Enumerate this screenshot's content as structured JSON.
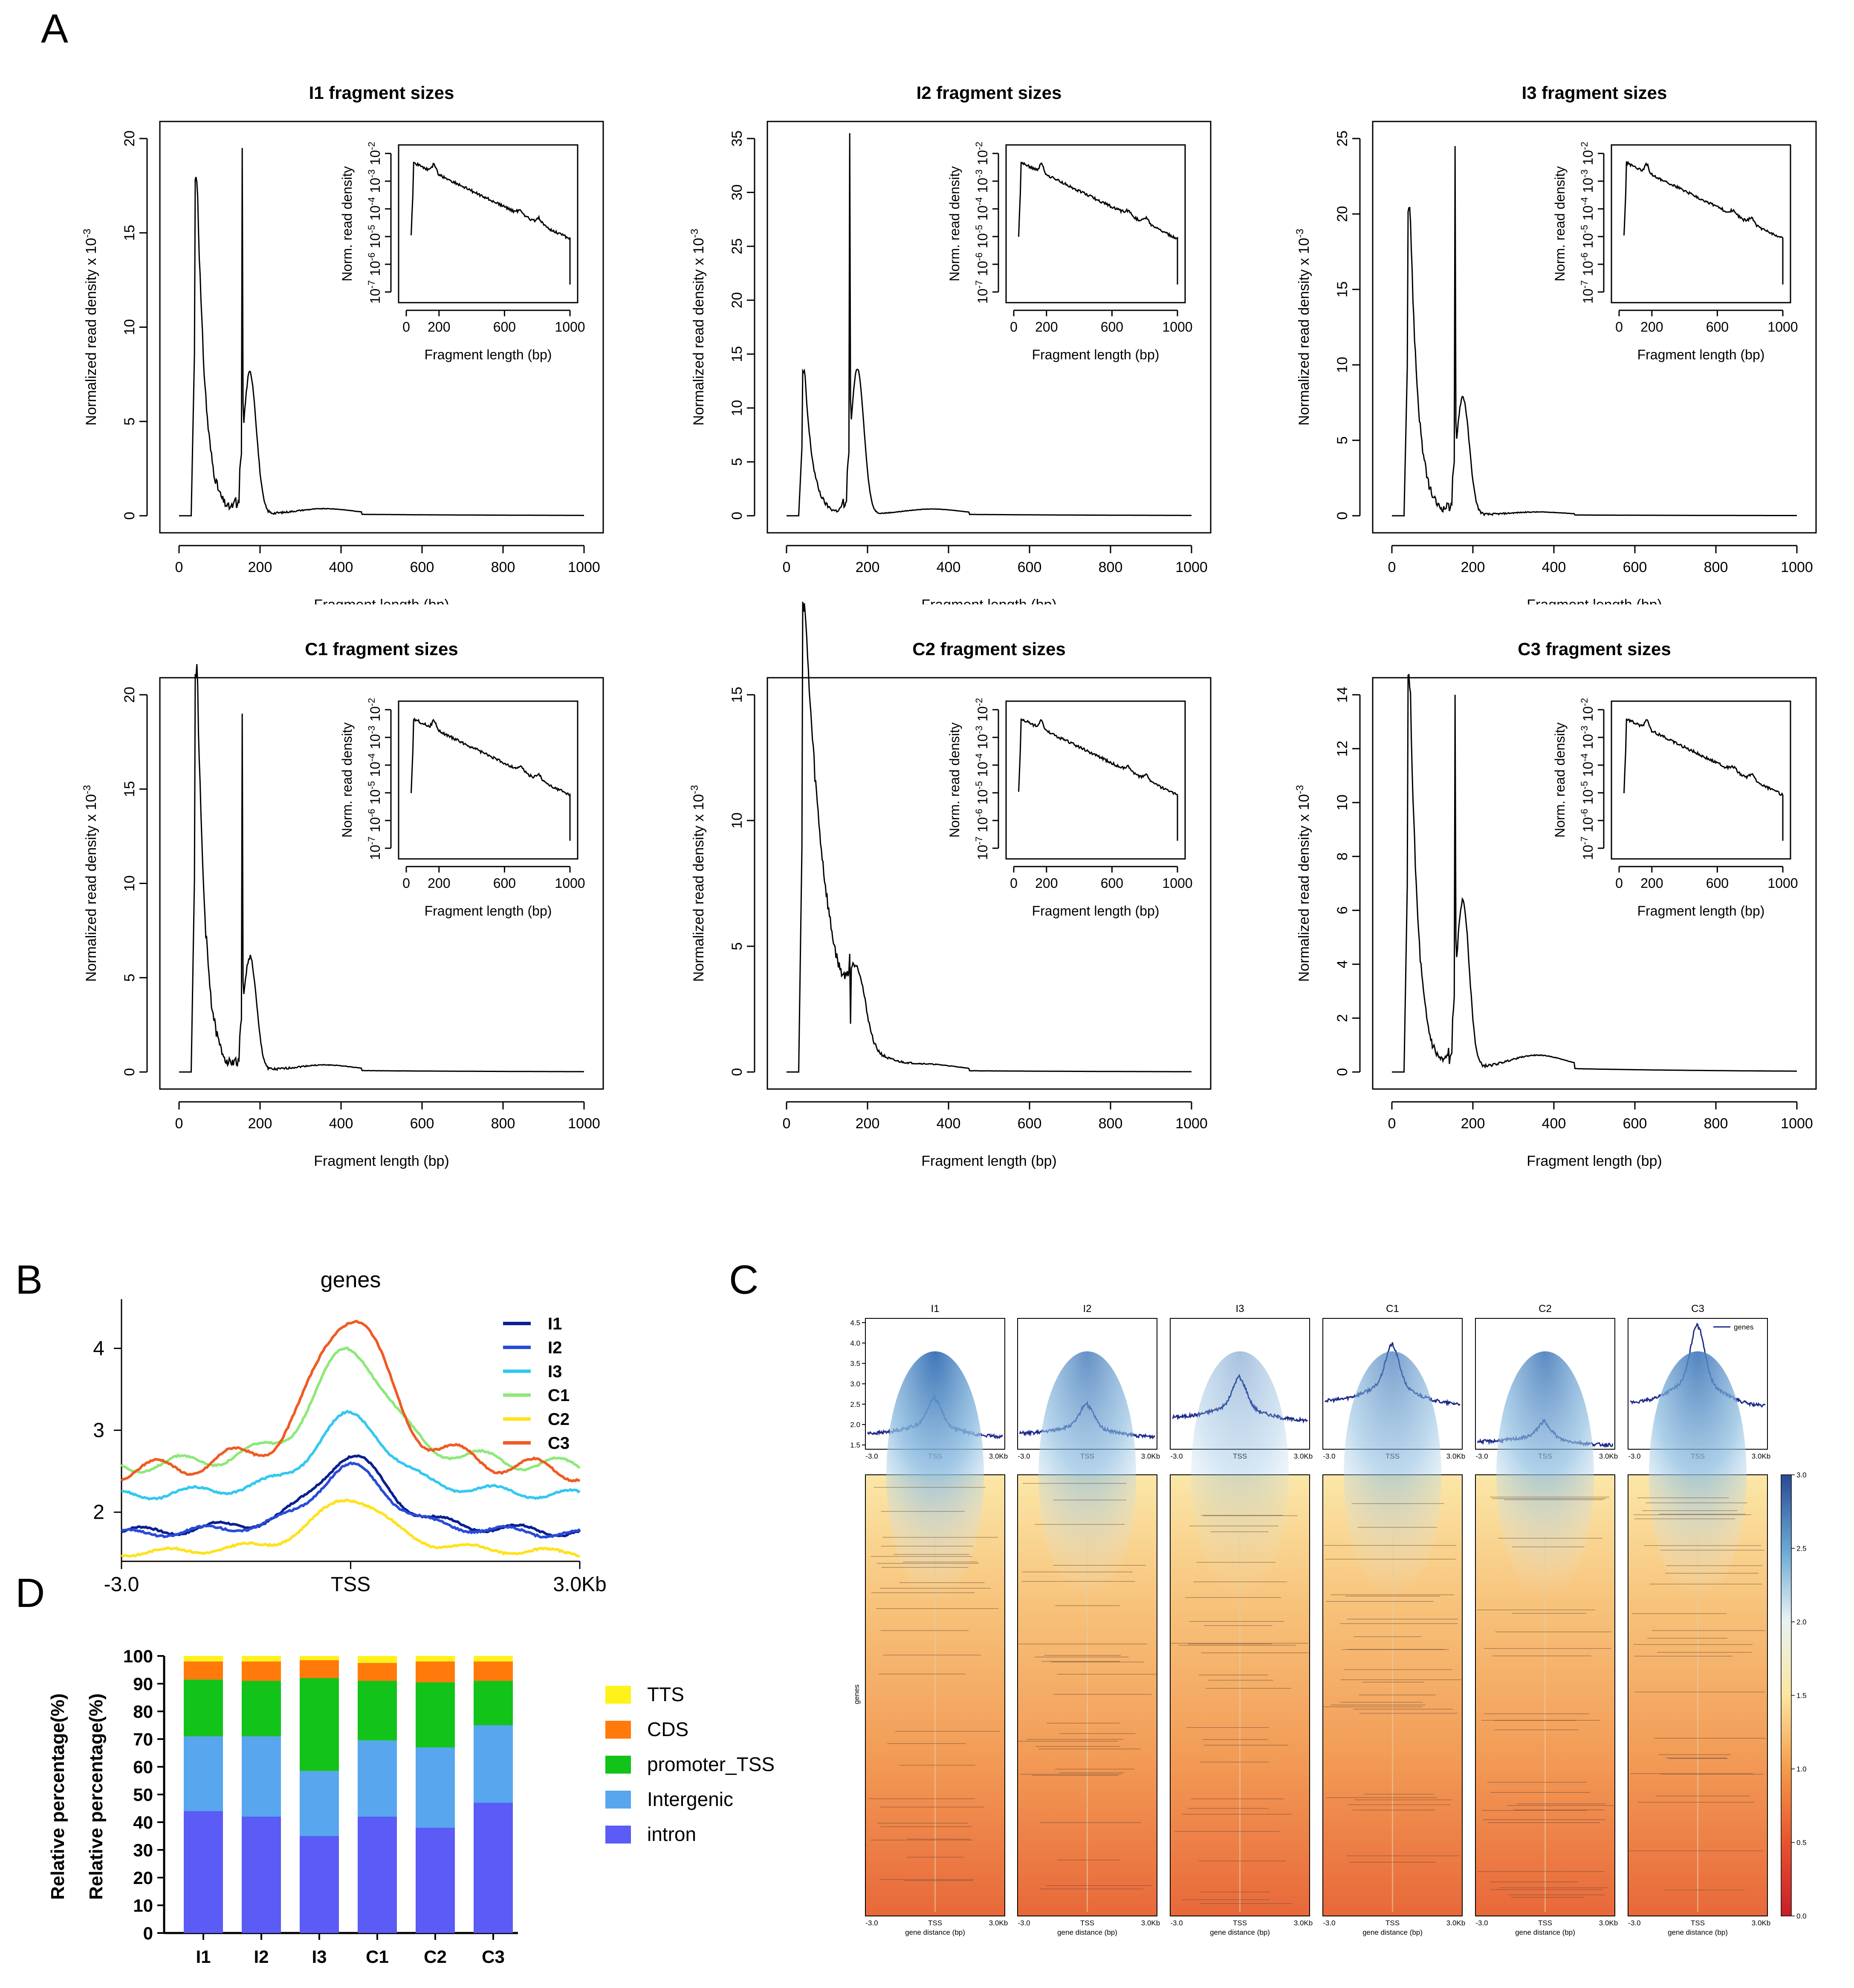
{
  "panels": {
    "A": "A",
    "B": "B",
    "C": "C",
    "D": "D"
  },
  "chart_data": [
    {
      "id": "A-fragment-sizes",
      "type": "line",
      "subplots": [
        {
          "title": "I1 fragment sizes",
          "ymax": 20,
          "yticks": [
            0,
            5,
            10,
            15,
            20
          ],
          "peak1": 17.8,
          "spike": 19.5,
          "peak2": 7.5,
          "tail": 0.3,
          "xlabel": "Fragment length (bp)",
          "xlabel_clipped": true
        },
        {
          "title": "I2 fragment sizes",
          "ymax": 35,
          "yticks": [
            0,
            5,
            10,
            15,
            20,
            25,
            30,
            35
          ],
          "peak1": 13.2,
          "spike": 35.5,
          "peak2": 13.5,
          "tail": 0.5,
          "xlabel": "Fragment length (bp)",
          "xlabel_clipped": true
        },
        {
          "title": "I3 fragment sizes",
          "ymax": 25,
          "yticks": [
            0,
            5,
            10,
            15,
            20,
            25
          ],
          "peak1": 20.5,
          "spike": 24.5,
          "peak2": 7.8,
          "tail": 0.2,
          "xlabel": "Fragment length (bp)",
          "xlabel_clipped": true
        },
        {
          "title": "C1 fragment sizes",
          "ymax": 20,
          "yticks": [
            0,
            5,
            10,
            15,
            20
          ],
          "peak1": 21.2,
          "spike": 19.0,
          "peak2": 6.0,
          "tail": 0.3,
          "xlabel": "Fragment length (bp)",
          "xlabel_clipped": false
        },
        {
          "title": "C2 fragment sizes",
          "ymax": 15,
          "yticks": [
            0,
            5,
            10,
            15
          ],
          "peak1": 18.6,
          "spike": 4.7,
          "peak2": 2.4,
          "tail": 0.2,
          "xlabel": "Fragment length (bp)",
          "xlabel_clipped": false
        },
        {
          "title": "C3 fragment sizes",
          "ymax": 14,
          "yticks": [
            0,
            2,
            4,
            6,
            8,
            10,
            12,
            14
          ],
          "peak1": 14.4,
          "spike": 14.0,
          "peak2": 6.2,
          "tail": 0.5,
          "xlabel": "Fragment length (bp)",
          "xlabel_clipped": false
        }
      ],
      "xticks": [
        0,
        200,
        400,
        600,
        800,
        1000
      ],
      "xlim": [
        0,
        1000
      ],
      "ylabel_main": "Normalized read density x 10",
      "ylabel_exp": "-3",
      "inset": {
        "ylabel": "Norm. read density",
        "xlabel": "Fragment length (bp)",
        "xticks": [
          0,
          200,
          600,
          1000
        ],
        "yticks": [
          "10",
          "10",
          "10",
          "10",
          "10",
          "10"
        ],
        "yexps": [
          "-2",
          "-3",
          "-4",
          "-5",
          "-6",
          "-7"
        ]
      }
    },
    {
      "id": "B-genes-profile",
      "type": "line",
      "title": "genes",
      "xticks": [
        "-3.0",
        "TSS",
        "3.0Kb"
      ],
      "yticks": [
        2,
        3,
        4
      ],
      "ylim": [
        1.4,
        4.6
      ],
      "series": [
        {
          "name": "I1",
          "color": "#0a1f8f",
          "base": 1.75,
          "peak": 2.67
        },
        {
          "name": "I2",
          "color": "#2a4bd7",
          "base": 1.73,
          "peak": 2.55
        },
        {
          "name": "I3",
          "color": "#33c8f0",
          "base": 2.2,
          "peak": 3.17
        },
        {
          "name": "C1",
          "color": "#8ee87a",
          "base": 2.55,
          "peak": 3.98
        },
        {
          "name": "C2",
          "color": "#ffe21a",
          "base": 1.5,
          "peak": 2.17
        },
        {
          "name": "C3",
          "color": "#f05a22",
          "base": 2.48,
          "peak": 4.42
        }
      ]
    },
    {
      "id": "C-heatmap",
      "type": "heatmap",
      "columns": [
        "I1",
        "I2",
        "I3",
        "C1",
        "C2",
        "C3"
      ],
      "profile_yticks": [
        "1.5",
        "2.0",
        "2.5",
        "3.0",
        "3.5",
        "4.0",
        "4.5"
      ],
      "profile_ylim": [
        1.5,
        4.5
      ],
      "profile_xticks": [
        "-3.0",
        "TSS",
        "3.0Kb"
      ],
      "profile_base": [
        1.75,
        1.75,
        2.15,
        2.55,
        1.55,
        2.5
      ],
      "profile_peak": [
        2.65,
        2.5,
        3.15,
        3.95,
        2.05,
        4.45
      ],
      "legend_label": "genes",
      "heatmap_ylabel": "genes",
      "heatmap_xlabel": "gene distance (bp)",
      "colorbar_ticks": [
        "3.0",
        "2.5",
        "2.0",
        "1.5",
        "1.0",
        "0.5",
        "0.0"
      ],
      "colorbar_range": [
        0.0,
        3.0
      ],
      "tss_intensity": [
        1.0,
        0.8,
        0.45,
        0.7,
        0.85,
        0.9
      ]
    },
    {
      "id": "D-annotation",
      "type": "bar",
      "stacked": true,
      "categories": [
        "I1",
        "I2",
        "I3",
        "C1",
        "C2",
        "C3"
      ],
      "ylabel_lines": [
        "Relative percentage(%)",
        "Relative percentage(%)"
      ],
      "yticks": [
        0,
        10,
        20,
        30,
        40,
        50,
        60,
        70,
        80,
        90,
        100
      ],
      "ylim": [
        0,
        100
      ],
      "series": [
        {
          "name": "intron",
          "color": "#5b5bf5",
          "values": [
            44,
            42,
            35,
            42,
            38,
            47
          ]
        },
        {
          "name": "Intergenic",
          "color": "#58a6ee",
          "values": [
            27,
            29,
            23.5,
            27.5,
            29,
            28
          ]
        },
        {
          "name": "promoter_TSS",
          "color": "#12c31a",
          "values": [
            20.5,
            20,
            33.5,
            21.5,
            23.5,
            16
          ]
        },
        {
          "name": "CDS",
          "color": "#ff7a0a",
          "values": [
            6.5,
            7,
            6.5,
            6.5,
            7.5,
            7
          ]
        },
        {
          "name": "TTS",
          "color": "#fff21a",
          "values": [
            2,
            2,
            1.5,
            2.5,
            2,
            2
          ]
        }
      ],
      "legend_order": [
        "TTS",
        "CDS",
        "promoter_TSS",
        "Intergenic",
        "intron"
      ]
    }
  ]
}
